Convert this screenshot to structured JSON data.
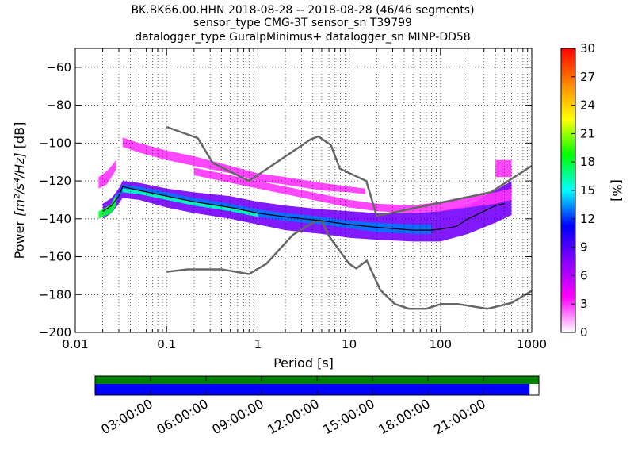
{
  "chart_data": {
    "type": "heatmap",
    "title_lines": [
      "BK.BK66.00.HHN   2018-08-28 -- 2018-08-28  (46/46 segments)",
      "sensor_type CMG-3T sensor_sn T39799",
      "datalogger_type GuralpMinimus+ datalogger_sn MINP-DD58"
    ],
    "xlabel": "Period [s]",
    "ylabel_prefix": "Power ",
    "ylabel_units": "[m²/s⁴/Hz]",
    "ylabel_suffix": " [dB]",
    "x_scale": "log",
    "xlim": [
      0.01,
      1000
    ],
    "ylim": [
      -200,
      -50
    ],
    "x_ticks": [
      {
        "value": 0.01,
        "label": "0.01"
      },
      {
        "value": 0.1,
        "label": "0.1"
      },
      {
        "value": 1,
        "label": "1"
      },
      {
        "value": 10,
        "label": "10"
      },
      {
        "value": 100,
        "label": "100"
      },
      {
        "value": 1000,
        "label": "1000"
      }
    ],
    "y_ticks": [
      -200,
      -180,
      -160,
      -140,
      -120,
      -100,
      -80,
      -60
    ],
    "grid": true,
    "colorbar": {
      "label": "[%]",
      "range": [
        0,
        30
      ],
      "ticks": [
        0,
        3,
        6,
        9,
        12,
        15,
        18,
        21,
        24,
        27,
        30
      ],
      "colors": [
        "#ffffff",
        "#ff00ff",
        "#8800ff",
        "#0000ff",
        "#00ffff",
        "#00ff00",
        "#ffff00",
        "#ff8800",
        "#ff0000"
      ]
    },
    "noise_model_color": "#666666",
    "new_high_noise_model": {
      "x": [
        0.1,
        0.22,
        0.32,
        0.8,
        3.8,
        4.6,
        6.3,
        7.9,
        15.4,
        20,
        354.8,
        1000
      ],
      "y": [
        -91.5,
        -97.4,
        -110.5,
        -120,
        -98,
        -96.5,
        -101,
        -113.5,
        -120,
        -138.5,
        -126,
        -112
      ]
    },
    "new_low_noise_model": {
      "x": [
        0.1,
        0.17,
        0.4,
        0.8,
        1.24,
        2.4,
        4.3,
        5,
        6,
        10,
        12,
        15.6,
        21.9,
        31.6,
        45,
        70,
        101,
        154,
        328,
        600,
        1000
      ],
      "y": [
        -168,
        -166.7,
        -166.7,
        -169.2,
        -163.7,
        -148.6,
        -141.1,
        -141.1,
        -149,
        -163.8,
        -166.2,
        -162.1,
        -177.5,
        -185,
        -187.5,
        -187.5,
        -185,
        -185,
        -187.5,
        -184.4,
        -178
      ]
    },
    "mean_psd": {
      "x": [
        0.02,
        0.025,
        0.03,
        0.033,
        0.05,
        0.1,
        0.2,
        0.5,
        1,
        2,
        5,
        10,
        20,
        50,
        80,
        100,
        150,
        200,
        300,
        400,
        500
      ],
      "y": [
        -136,
        -133,
        -128,
        -123,
        -125,
        -128,
        -131,
        -134,
        -137,
        -139,
        -141,
        -143,
        -144.5,
        -146,
        -146,
        -145.5,
        -144,
        -140,
        -136,
        -133,
        -132
      ]
    },
    "density_bands": [
      {
        "x": [
          0.02,
          0.025,
          0.03,
          0.033,
          0.05,
          0.1,
          0.2,
          0.5,
          1,
          2,
          5,
          10,
          20,
          50,
          100,
          200,
          400,
          600
        ],
        "lo": [
          -140,
          -137,
          -132,
          -129,
          -130,
          -134,
          -137,
          -140,
          -143,
          -146,
          -148,
          -150,
          -151,
          -152,
          -152,
          -148,
          -142,
          -138
        ],
        "hi": [
          -132,
          -129,
          -124,
          -120,
          -121,
          -124,
          -126,
          -128,
          -131,
          -133,
          -135,
          -136,
          -137,
          -137,
          -136,
          -133,
          -125,
          -120
        ],
        "level": 8
      },
      {
        "x": [
          0.025,
          0.03,
          0.033,
          0.05,
          0.1,
          0.2,
          0.5,
          1,
          2,
          5,
          10,
          20,
          50,
          80
        ],
        "lo": [
          -134,
          -129,
          -126,
          -127,
          -130,
          -133,
          -136,
          -139,
          -141,
          -143,
          -145,
          -147,
          -148,
          -148
        ],
        "hi": [
          -131,
          -126,
          -122,
          -123,
          -126,
          -129,
          -132,
          -135,
          -137,
          -139,
          -141,
          -142,
          -143,
          -143
        ],
        "level": 13
      },
      {
        "x": [
          0.033,
          0.05,
          0.1,
          0.2,
          0.5,
          1
        ],
        "lo": [
          -126,
          -127,
          -130,
          -133,
          -136,
          -139
        ],
        "hi": [
          -124,
          -125,
          -128,
          -131,
          -134,
          -137
        ],
        "level": 16
      },
      {
        "x": [
          0.018,
          0.02,
          0.025,
          0.028
        ],
        "lo": [
          -140,
          -139,
          -137,
          -133
        ],
        "hi": [
          -136,
          -135,
          -132,
          -127
        ],
        "level": 18
      },
      {
        "x": [
          0.033,
          0.05,
          0.1,
          0.2,
          0.5,
          1,
          2,
          5,
          10,
          15
        ],
        "lo": [
          -102,
          -105,
          -109,
          -112,
          -116,
          -120,
          -122,
          -125,
          -126,
          -127
        ],
        "hi": [
          -97,
          -100,
          -104,
          -107,
          -112,
          -116,
          -118,
          -121,
          -123,
          -124
        ],
        "level": 3
      },
      {
        "x": [
          0.2,
          0.5,
          1,
          2,
          5,
          10,
          20,
          50,
          100,
          200,
          400,
          600
        ],
        "lo": [
          -117,
          -121,
          -124,
          -127,
          -131,
          -134,
          -136,
          -137,
          -136,
          -134,
          -132,
          -130
        ],
        "hi": [
          -113,
          -117,
          -120,
          -123,
          -127,
          -130,
          -132,
          -133,
          -131,
          -128,
          -126,
          -124
        ],
        "level": 3
      },
      {
        "x": [
          0.018,
          0.022,
          0.025,
          0.028
        ],
        "lo": [
          -124,
          -122,
          -118,
          -114
        ],
        "hi": [
          -118,
          -115,
          -112,
          -109
        ],
        "level": 3
      },
      {
        "x": [
          400,
          500,
          600
        ],
        "lo": [
          -118,
          -118,
          -118
        ],
        "hi": [
          -109,
          -109,
          -109
        ],
        "level": 3
      }
    ]
  },
  "timeline": {
    "tick_labels": [
      "03:00:00",
      "06:00:00",
      "09:00:00",
      "12:00:00",
      "15:00:00",
      "18:00:00",
      "21:00:00"
    ],
    "top_bar_color": "#008000",
    "bottom_bar_color": "#0000ff",
    "top_coverage_fraction": 1.0,
    "bottom_coverage_fraction": 0.979
  }
}
